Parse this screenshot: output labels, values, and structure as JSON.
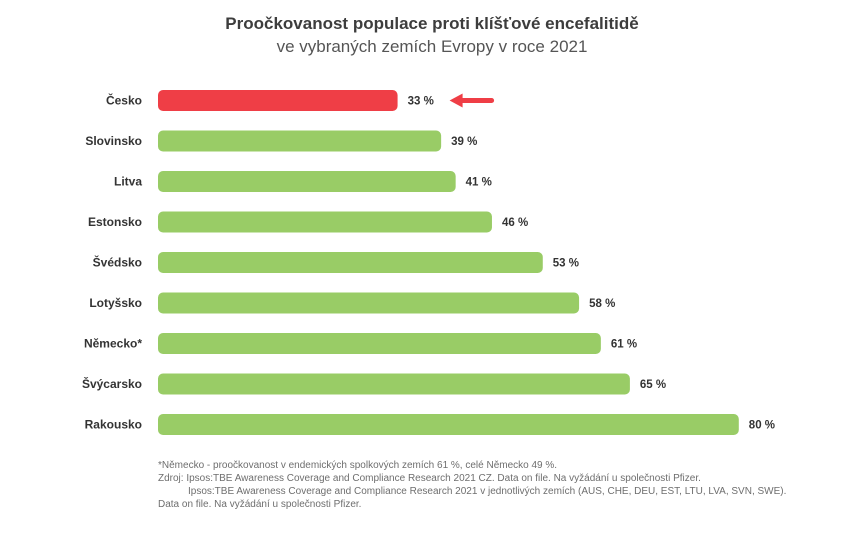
{
  "chart_data": {
    "type": "bar",
    "orientation": "horizontal",
    "title": "Proočkovanost populace proti klíšťové encefalitidě",
    "subtitle": "ve vybraných zemích Evropy v roce 2021",
    "categories": [
      "Česko",
      "Slovinsko",
      "Litva",
      "Estonsko",
      "Švédsko",
      "Lotyšsko",
      "Německo*",
      "Švýcarsko",
      "Rakousko"
    ],
    "values": [
      33,
      39,
      41,
      46,
      53,
      58,
      61,
      65,
      80
    ],
    "value_labels": [
      "33 %",
      "39 %",
      "41 %",
      "46 %",
      "53 %",
      "58 %",
      "61 %",
      "65 %",
      "80 %"
    ],
    "highlight_index": 0,
    "colors": {
      "default": "#99cc66",
      "highlight": "#ef3e46",
      "arrow": "#ef3e46"
    },
    "grid": false,
    "legend": "none"
  },
  "notes": {
    "footnote": "*Německo - proočkovanost v endemických spolkových zemích 61 %, celé Německo 49 %.",
    "source_line1": "Zdroj: Ipsos:TBE Awareness Coverage and Compliance Research 2021 CZ. Data on file. Na vyžádání u společnosti Pfizer.",
    "source_line2": "Ipsos:TBE Awareness Coverage and Compliance Research 2021 v jednotlivých zemích (AUS, CHE, DEU, EST, LTU, LVA, SVN, SWE).",
    "source_line3": "Data on file. Na vyžádání u společnosti Pfizer."
  }
}
